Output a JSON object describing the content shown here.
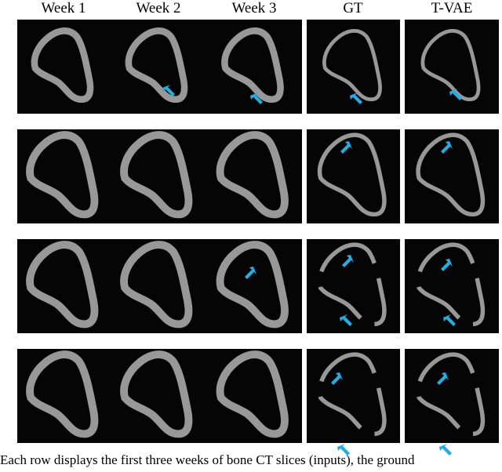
{
  "figure": {
    "headers": [
      "Week 1",
      "Week 2",
      "Week 3",
      "GT",
      "T-VAE"
    ],
    "caption": "Each row displays the first three weeks of bone CT slices (inputs), the ground"
  }
}
